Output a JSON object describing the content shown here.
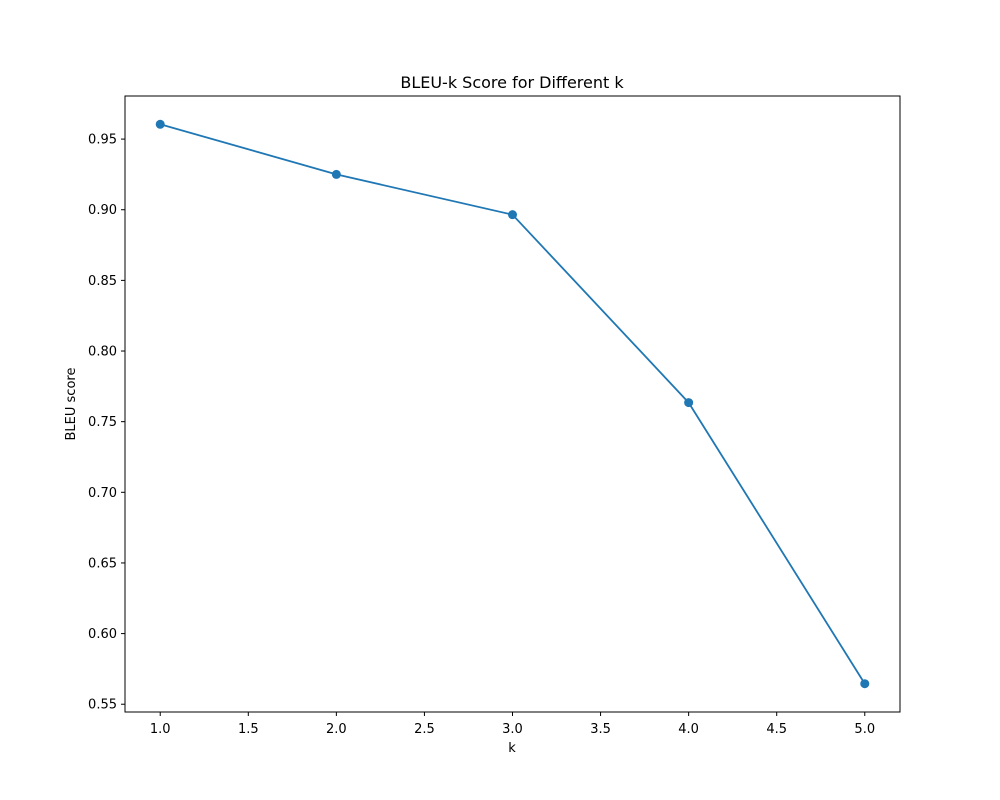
{
  "chart_data": {
    "type": "line",
    "title": "BLEU-k Score for Different k",
    "xlabel": "k",
    "ylabel": "BLEU score",
    "x": [
      1,
      2,
      3,
      4,
      5
    ],
    "series": [
      {
        "values": [
          0.9605,
          0.925,
          0.8965,
          0.7635,
          0.5645
        ],
        "color": "#1f77b4",
        "marker": "circle"
      }
    ],
    "xlim": [
      0.8,
      5.2
    ],
    "ylim": [
      0.5445,
      0.9805
    ],
    "xticks": [
      "1.0",
      "1.5",
      "2.0",
      "2.5",
      "3.0",
      "3.5",
      "4.0",
      "4.5",
      "5.0"
    ],
    "yticks": [
      "0.55",
      "0.60",
      "0.65",
      "0.70",
      "0.75",
      "0.80",
      "0.85",
      "0.90",
      "0.95"
    ],
    "grid": false,
    "legend": "none"
  }
}
